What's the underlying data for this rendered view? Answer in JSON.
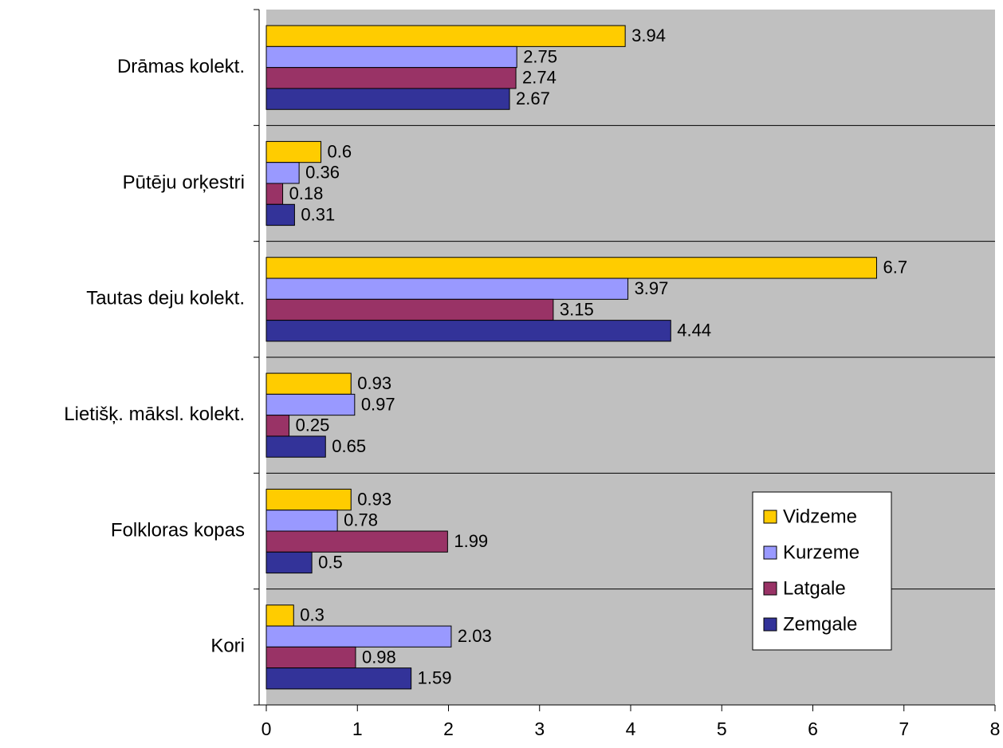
{
  "chart_data": {
    "type": "bar",
    "orientation": "horizontal",
    "categories": [
      "Drāmas kolekt.",
      "Pūtēju orķestri",
      "Tautas deju kolekt.",
      "Lietišķ. māksl. kolekt.",
      "Folkloras kopas",
      "Kori"
    ],
    "series": [
      {
        "name": "Vidzeme",
        "color": "#FFCC00",
        "values": [
          3.94,
          0.6,
          6.7,
          0.93,
          0.93,
          0.3
        ]
      },
      {
        "name": "Kurzeme",
        "color": "#9999FF",
        "values": [
          2.75,
          0.36,
          3.97,
          0.97,
          0.78,
          2.03
        ]
      },
      {
        "name": "Latgale",
        "color": "#993366",
        "values": [
          2.74,
          0.18,
          3.15,
          0.25,
          1.99,
          0.98
        ]
      },
      {
        "name": "Zemgale",
        "color": "#333399",
        "values": [
          2.67,
          0.31,
          4.44,
          0.65,
          0.5,
          1.59
        ]
      }
    ],
    "xlim": [
      0,
      8
    ],
    "xticks": [
      0,
      1,
      2,
      3,
      4,
      5,
      6,
      7,
      8
    ],
    "grid": true,
    "legend_position": "lower right"
  }
}
